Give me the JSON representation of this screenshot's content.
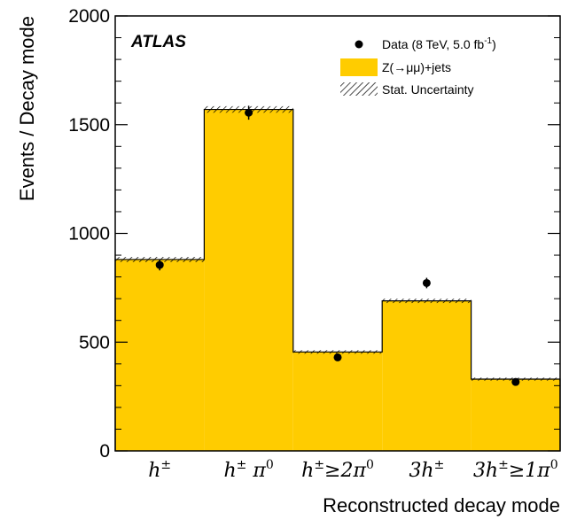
{
  "chart_data": {
    "type": "bar",
    "experiment_label": "ATLAS",
    "xlabel": "Reconstructed decay mode",
    "ylabel": "Events / Decay mode",
    "ylim": [
      0,
      2000
    ],
    "yticks": [
      "0",
      "500",
      "1000",
      "1500",
      "2000"
    ],
    "categories": [
      {
        "base": "h",
        "sup": "±",
        "rest": "",
        "rest_sup": ""
      },
      {
        "base": "h",
        "sup": "±",
        "rest": " π",
        "rest_sup": "0"
      },
      {
        "base": "h",
        "sup": "±",
        "rest": "≥2π",
        "rest_sup": "0"
      },
      {
        "base": "3h",
        "sup": "±",
        "rest": "",
        "rest_sup": ""
      },
      {
        "base": "3h",
        "sup": "±",
        "rest": "≥1π",
        "rest_sup": "0"
      }
    ],
    "series": [
      {
        "name": "Z(→μμ)+jets",
        "kind": "histogram",
        "color": "#ffcc00",
        "values": [
          880,
          1570,
          455,
          690,
          330
        ],
        "stat_uncertainty": [
          12,
          15,
          8,
          10,
          7
        ]
      },
      {
        "name": "Data (8 TeV, 5.0 fb-1)",
        "kind": "points",
        "color": "#000000",
        "values": [
          855,
          1555,
          430,
          772,
          317
        ],
        "errors": [
          25,
          32,
          17,
          24,
          14
        ]
      }
    ],
    "legend": {
      "position": "top-right",
      "data_label": "Data (8 TeV, 5.0 fb",
      "data_label_sup": "-1",
      "data_label_end": ")",
      "mc_label": "Z(→μμ)+jets",
      "unc_label": "Stat. Uncertainty"
    }
  }
}
